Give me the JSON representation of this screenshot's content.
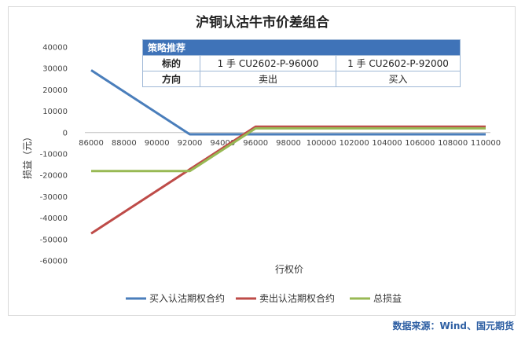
{
  "chart_data": {
    "type": "line",
    "title": "沪铜认沽牛市价差组合",
    "xlabel": "行权价",
    "ylabel": "损益（元）",
    "x": [
      86000,
      88000,
      90000,
      92000,
      94000,
      96000,
      98000,
      100000,
      102000,
      104000,
      106000,
      108000,
      110000
    ],
    "x_tick_labels": [
      "86000",
      "88000",
      "90000",
      "92000",
      "94000",
      "96000",
      "98000",
      "100000",
      "102000",
      "104000",
      "106000",
      "108000",
      "110000"
    ],
    "ylim": [
      -60000,
      40000
    ],
    "y_ticks": [
      40000,
      30000,
      20000,
      10000,
      0,
      -10000,
      -20000,
      -30000,
      -40000,
      -50000,
      -60000
    ],
    "y_tick_labels": [
      "40000",
      "30000",
      "20000",
      "10000",
      "0",
      "-10000",
      "-20000",
      "-30000",
      "-40000",
      "-50000",
      "-60000"
    ],
    "series": [
      {
        "name": "买入认沽期权合约",
        "color": "#4a7ebb",
        "points": [
          [
            86000,
            29200
          ],
          [
            92000,
            -800
          ],
          [
            110000,
            -800
          ]
        ]
      },
      {
        "name": "卖出认沽期权合约",
        "color": "#be4b48",
        "points": [
          [
            86000,
            -47200
          ],
          [
            96000,
            2800
          ],
          [
            110000,
            2800
          ]
        ]
      },
      {
        "name": "总损益",
        "color": "#98b954",
        "points": [
          [
            86000,
            -18000
          ],
          [
            92000,
            -18000
          ],
          [
            96000,
            2000
          ],
          [
            110000,
            2000
          ]
        ]
      }
    ],
    "legend_position": "bottom",
    "grid": false
  },
  "strategy_table": {
    "header": "策略推荐",
    "rows": [
      {
        "label": "标的",
        "col1": "1 手 CU2602-P-96000",
        "col2": "1 手 CU2602-P-92000"
      },
      {
        "label": "方向",
        "col1": "卖出",
        "col2": "买入"
      }
    ]
  },
  "source_note": "数据来源：Wind、国元期货"
}
